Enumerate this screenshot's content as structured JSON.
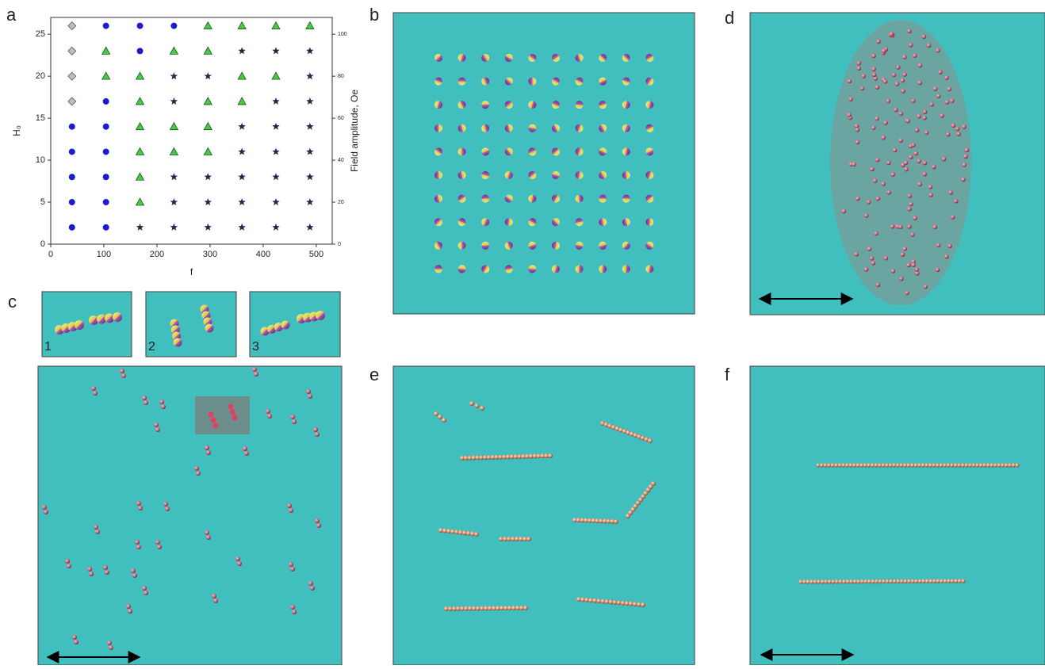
{
  "chart_data": {
    "type": "scatter",
    "x_label": "f",
    "y_label": "H₀",
    "y2_label": "Field amplitude, Oe",
    "xlim": [
      0,
      530
    ],
    "xticks": [
      0,
      100,
      200,
      300,
      400,
      500
    ],
    "ylim": [
      0,
      27
    ],
    "yticks": [
      0,
      5,
      10,
      15,
      20,
      25
    ],
    "y2lim": [
      0,
      108
    ],
    "y2ticks": [
      0,
      20,
      40,
      60,
      80,
      100
    ],
    "series": [
      {
        "marker": "diamond",
        "color": "#bdbdbd",
        "x": [
          40,
          40,
          40,
          40
        ],
        "y": [
          17,
          20,
          23,
          26
        ]
      },
      {
        "marker": "circle",
        "color": "#1c1ccf",
        "x": [
          104,
          168,
          232,
          168,
          104,
          40,
          104,
          40,
          104,
          40,
          104,
          40,
          104,
          40,
          104
        ],
        "y": [
          26,
          26,
          26,
          23,
          17,
          14,
          14,
          11,
          11,
          8,
          8,
          5,
          5,
          2,
          2
        ]
      },
      {
        "marker": "triangle",
        "color": "#45cc45",
        "x": [
          296,
          360,
          424,
          488,
          104,
          232,
          296,
          104,
          168,
          360,
          424,
          168,
          296,
          360,
          168,
          232,
          296,
          168,
          232,
          296,
          168,
          168
        ],
        "y": [
          26,
          26,
          26,
          26,
          23,
          23,
          23,
          20,
          20,
          20,
          20,
          17,
          17,
          17,
          14,
          14,
          14,
          11,
          11,
          11,
          8,
          5
        ]
      },
      {
        "marker": "star",
        "color": "#3b1a4c",
        "x": [
          360,
          424,
          488,
          232,
          296,
          488,
          232,
          424,
          488,
          360,
          424,
          488,
          360,
          424,
          488,
          232,
          296,
          360,
          424,
          488,
          232,
          296,
          360,
          424,
          488,
          168,
          232,
          296,
          360,
          424,
          488
        ],
        "y": [
          23,
          23,
          23,
          20,
          20,
          20,
          17,
          17,
          17,
          14,
          14,
          14,
          11,
          11,
          11,
          8,
          8,
          8,
          8,
          8,
          5,
          5,
          5,
          5,
          5,
          2,
          2,
          2,
          2,
          2,
          2
        ]
      }
    ]
  },
  "panel_labels": [
    "a",
    "b",
    "c",
    "d",
    "e",
    "f"
  ],
  "inset_labels": [
    "1",
    "2",
    "3"
  ]
}
